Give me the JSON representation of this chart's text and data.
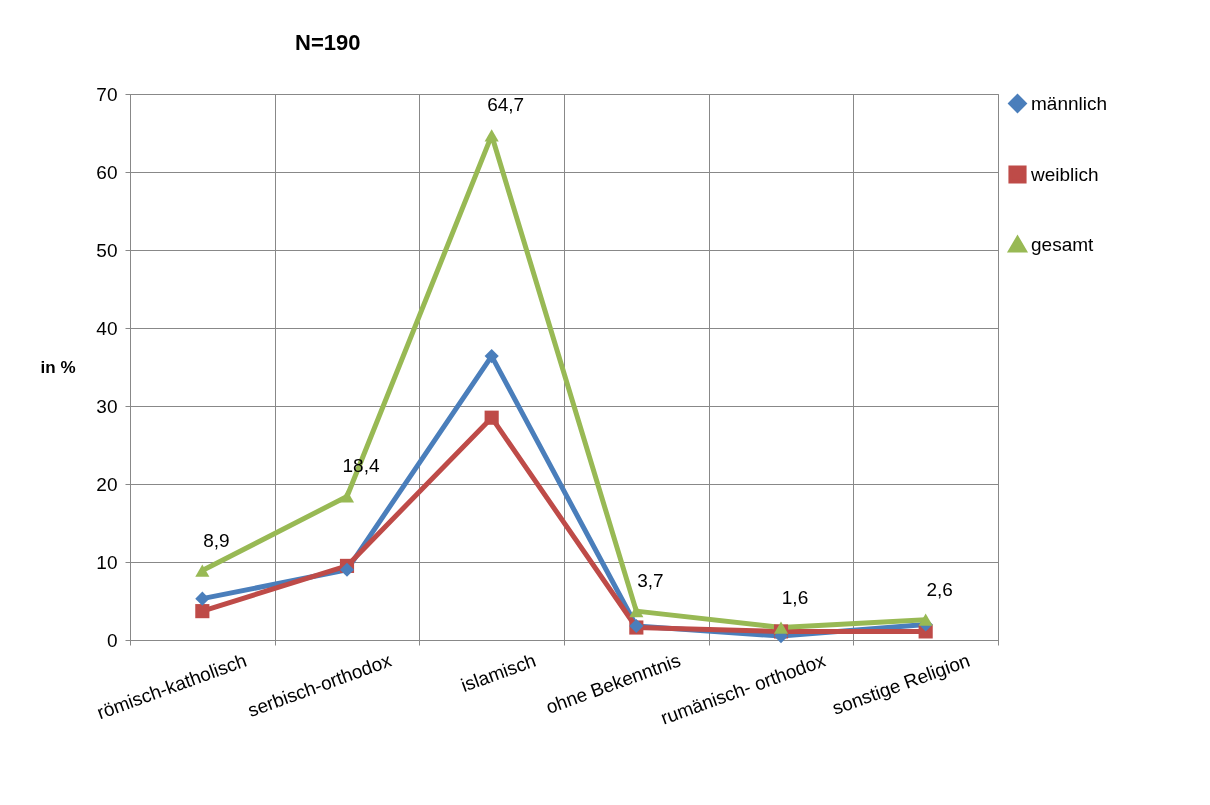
{
  "chart_data": {
    "type": "line",
    "title": "N=190",
    "ylabel": "in %",
    "categories": [
      "römisch-katholisch",
      "serbisch-orthodox",
      "islamisch",
      "ohne Bekenntnis",
      "rumänisch- orthodox",
      "sonstige Religion"
    ],
    "series": [
      {
        "name": "männlich",
        "color": "#4a7ebb",
        "marker": "diamond",
        "values": [
          5.3,
          9.0,
          36.4,
          1.8,
          0.5,
          2.0
        ]
      },
      {
        "name": "weiblich",
        "color": "#be4b48",
        "marker": "square",
        "values": [
          3.7,
          9.5,
          28.5,
          1.6,
          1.1,
          1.1
        ]
      },
      {
        "name": "gesamt",
        "color": "#98b954",
        "marker": "triangle",
        "values": [
          8.9,
          18.4,
          64.7,
          3.7,
          1.6,
          2.6
        ],
        "value_labels": [
          "8,9",
          "18,4",
          "64,7",
          "3,7",
          "1,6",
          "2,6"
        ]
      }
    ],
    "ylim": [
      0,
      70
    ],
    "yticks": [
      0,
      10,
      20,
      30,
      40,
      50,
      60,
      70
    ],
    "grid": true,
    "legend": "right",
    "line_style": "solid"
  }
}
